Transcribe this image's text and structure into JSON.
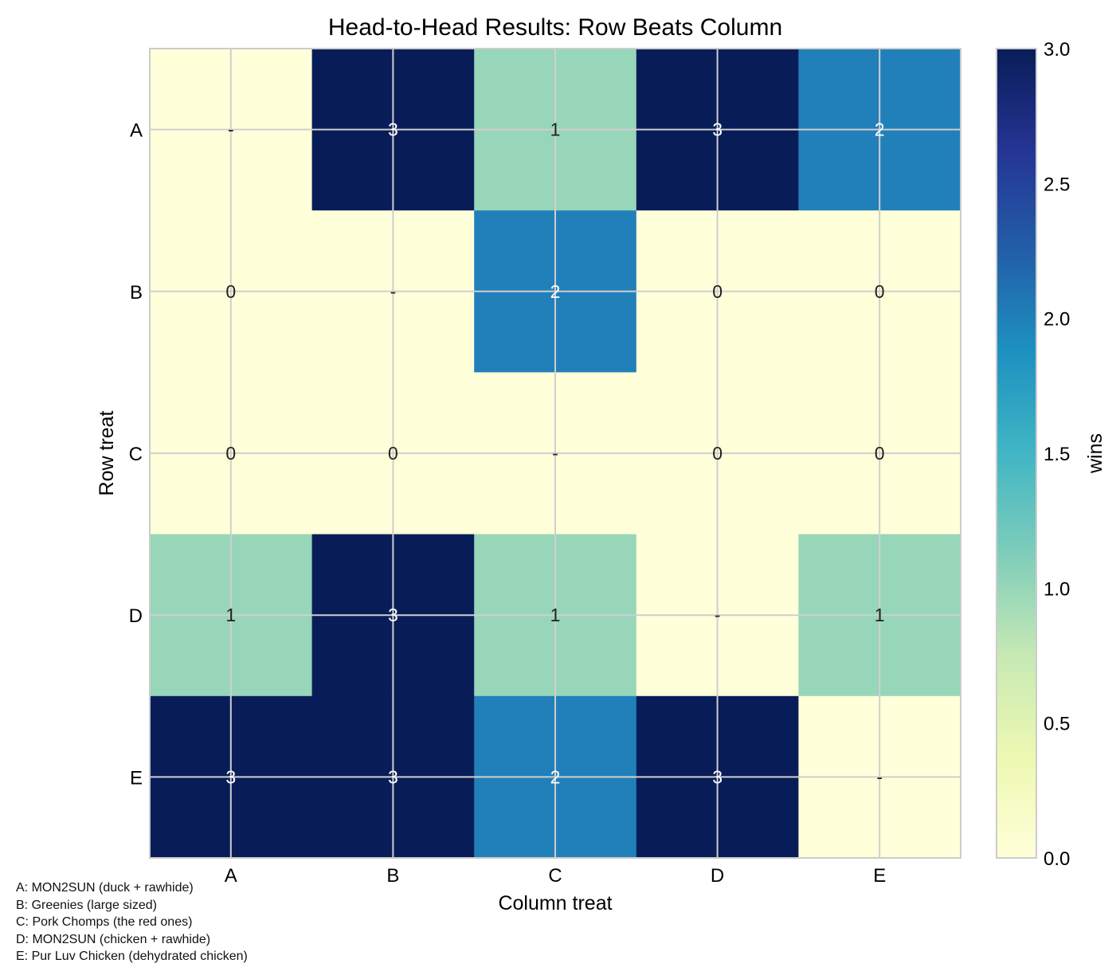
{
  "chart_data": {
    "type": "heatmap",
    "title": "Head-to-Head Results: Row Beats Column",
    "xlabel": "Column treat",
    "ylabel": "Row treat",
    "rows": [
      "A",
      "B",
      "C",
      "D",
      "E"
    ],
    "columns": [
      "A",
      "B",
      "C",
      "D",
      "E"
    ],
    "values": [
      [
        null,
        3,
        1,
        3,
        2
      ],
      [
        0,
        null,
        2,
        0,
        0
      ],
      [
        0,
        0,
        null,
        0,
        0
      ],
      [
        1,
        3,
        1,
        null,
        1
      ],
      [
        3,
        3,
        2,
        3,
        null
      ]
    ],
    "diagonal_label": "-",
    "colormap": "YlGnBu",
    "colorbar": {
      "label": "wins",
      "range": [
        0.0,
        3.0
      ],
      "ticks": [
        "0.0",
        "0.5",
        "1.0",
        "1.5",
        "2.0",
        "2.5",
        "3.0"
      ]
    },
    "grid": true
  },
  "legend": [
    "A: MON2SUN (duck + rawhide)",
    "B: Greenies (large sized)",
    "C: Pork Chomps (the red ones)",
    "D: MON2SUN (chicken + rawhide)",
    "E: Pur Luv Chicken (dehydrated chicken)"
  ],
  "colors": {
    "zero": "#ffffd9",
    "one": "#97d6b9",
    "two": "#2180b9",
    "three": "#081d58",
    "frame": "#cccccc",
    "grid": "#cfcfcf"
  }
}
